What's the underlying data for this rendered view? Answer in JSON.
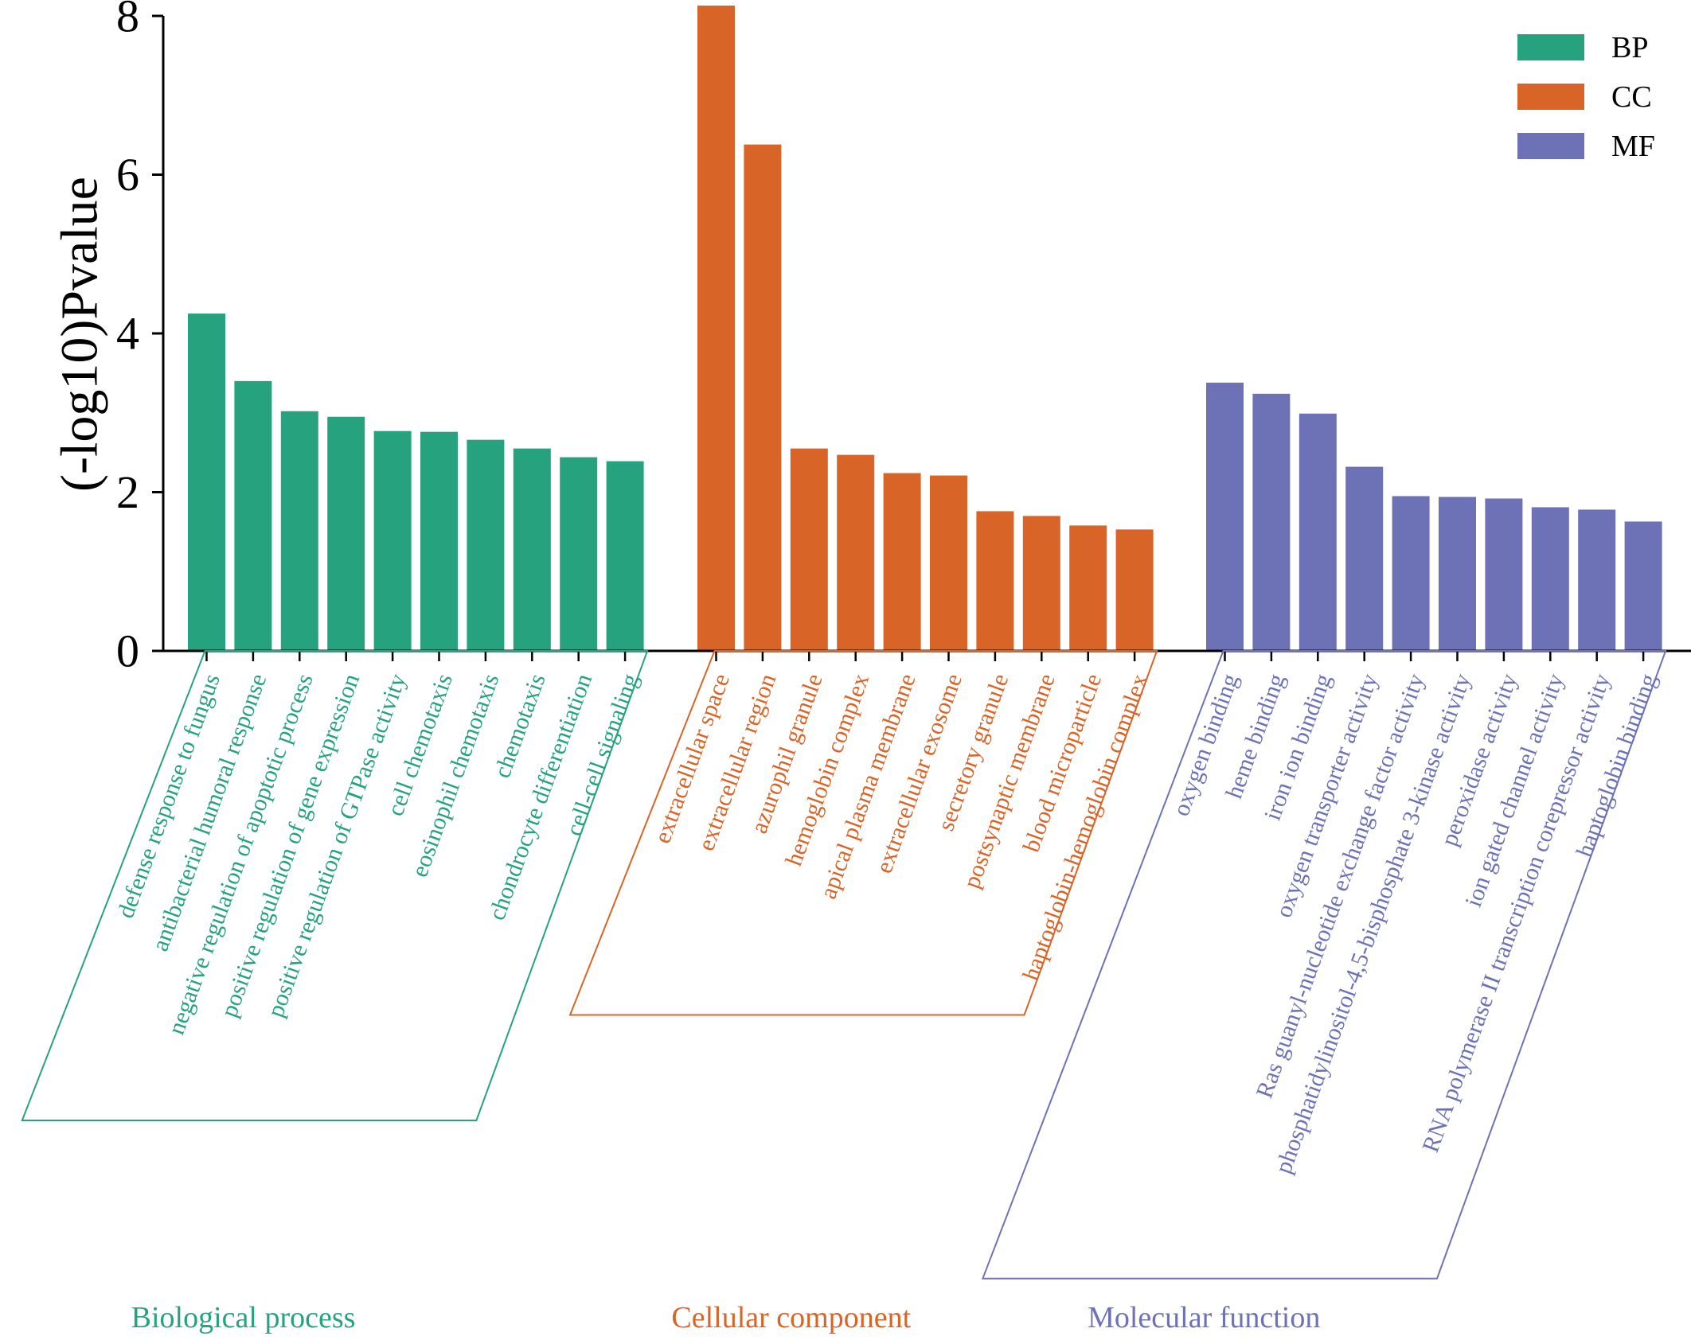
{
  "chart_data": {
    "type": "bar",
    "ylabel": "(-log10)Pvalue",
    "ylim": [
      0,
      8
    ],
    "yticks": [
      0,
      2,
      4,
      6,
      8
    ],
    "legend": {
      "position": "top-right",
      "entries": [
        "BP",
        "CC",
        "MF"
      ]
    },
    "groups": [
      {
        "key": "BP",
        "name": "Biological process",
        "color": "#26a27f",
        "categories": [
          "defense response to fungus",
          "antibacterial humoral response",
          "negative regulation of apoptotic process",
          "positive regulation of gene expression",
          "positive regulation of GTPase activity",
          "cell chemotaxis",
          "eosinophil chemotaxis",
          "chemotaxis",
          "chondrocyte differentiation",
          "cell-cell signaling"
        ],
        "values": [
          4.25,
          3.4,
          3.02,
          2.95,
          2.77,
          2.76,
          2.66,
          2.55,
          2.44,
          2.39
        ]
      },
      {
        "key": "CC",
        "name": "Cellular component",
        "color": "#d96427",
        "categories": [
          "extracellular space",
          "extracellular region",
          "azurophil granule",
          "hemoglobin complex",
          "apical plasma membrane",
          "extracellular exosome",
          "secretory granule",
          "postsynaptic membrane",
          "blood microparticle",
          "haptoglobin-hemoglobin complex"
        ],
        "values": [
          8.13,
          6.38,
          2.55,
          2.47,
          2.24,
          2.21,
          1.76,
          1.7,
          1.58,
          1.53
        ]
      },
      {
        "key": "MF",
        "name": "Molecular function",
        "color": "#6d72b6",
        "categories": [
          "oxygen binding",
          "heme binding",
          "iron ion binding",
          "oxygen transporter activity",
          "Ras guanyl-nucleotide exchange factor activity",
          "phosphatidylinositol-4,5-bisphosphate 3-kinase activity",
          "peroxidase activity",
          "ion gated channel activity",
          "RNA polymerase II transcription corepressor activity",
          "haptoglobin binding"
        ],
        "values": [
          3.38,
          3.24,
          2.99,
          2.32,
          1.95,
          1.94,
          1.92,
          1.81,
          1.78,
          1.63
        ]
      }
    ]
  }
}
